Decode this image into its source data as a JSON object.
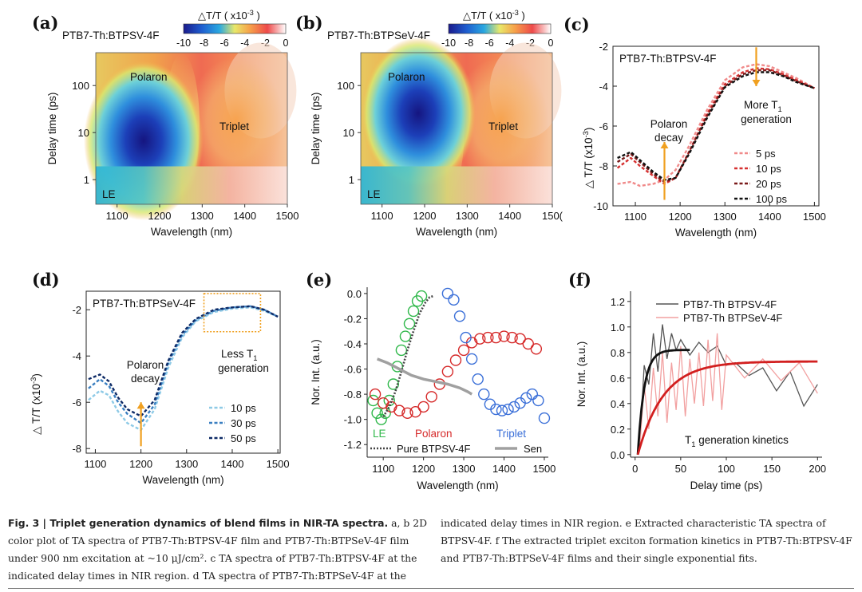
{
  "panels": {
    "a": {
      "label": "(a)",
      "sample": "PTB7-Th:BTPSV-4F",
      "colorbar": {
        "title": "△T/T ( x10",
        "exp": "-3",
        "close": " )",
        "ticks": [
          "-10",
          "-8",
          "-6",
          "-4",
          "-2",
          "0"
        ]
      },
      "yticks": [
        "100",
        "10",
        "1"
      ],
      "xticks": [
        "1100",
        "1200",
        "1300",
        "1400",
        "1500"
      ],
      "xlabel": "Wavelength (nm)",
      "ylabel": "Delay time (ps)",
      "annotations": {
        "polaron": "Polaron",
        "triplet": "Triplet",
        "le": "LE"
      }
    },
    "b": {
      "label": "(b)",
      "sample": "PTB7-Th:BTPSeV-4F",
      "colorbar": {
        "title": "△T/T ( x10",
        "exp": "-3",
        "close": " )",
        "ticks": [
          "-10",
          "-8",
          "-6",
          "-4",
          "-2",
          "0"
        ]
      },
      "yticks": [
        "100",
        "10",
        "1"
      ],
      "xticks": [
        "1100",
        "1200",
        "1300",
        "1400",
        "150("
      ],
      "xlabel": "Wavelength (nm)",
      "ylabel": "Delay time (ps)",
      "annotations": {
        "polaron": "Polaron",
        "triplet": "Triplet",
        "le": "LE"
      }
    },
    "c": {
      "label": "(c)",
      "sample": "PTB7-Th:BTPSV-4F",
      "ylabel": "△  T/T (x10",
      "ylabel_exp": "-3",
      "ylabel_close": ")",
      "xlabel": "Wavelength (nm)",
      "annotation_left": [
        "Polaron",
        "decay"
      ],
      "annotation_right": [
        "More T",
        "1",
        "generation"
      ],
      "legend": [
        "5 ps",
        "10 ps",
        "20 ps",
        "100 ps"
      ]
    },
    "d": {
      "label": "(d)",
      "sample": "PTB7-Th:BTPSeV-4F",
      "ylabel": "△  T/T (x10",
      "ylabel_exp": "-3",
      "ylabel_close": ")",
      "xlabel": "Wavelength (nm)",
      "annotation_left": [
        "Polaron",
        "decay"
      ],
      "annotation_right": [
        "Less T",
        "1",
        "generation"
      ],
      "legend": [
        "10 ps",
        "30 ps",
        "50 ps"
      ]
    },
    "e": {
      "label": "(e)",
      "ylabel": "Nor. Int. (a.u.)",
      "xlabel": "Wavelength (nm)",
      "series_labels": {
        "le": "LE",
        "polaron": "Polaron",
        "triplet": "Triplet",
        "pure": "Pure BTPSV-4F",
        "sen": "Sen"
      }
    },
    "f": {
      "label": "(f)",
      "ylabel": "Nor. Int. (a.u.)",
      "xlabel": "Delay time (ps)",
      "legend": [
        "PTB7-Th BTPSV-4F",
        "PTB7-Th BTPSeV-4F"
      ],
      "annotation": [
        "T",
        "1",
        " generation kinetics"
      ]
    }
  },
  "chart_data": [
    {
      "id": "a",
      "type": "heatmap",
      "title": "PTB7-Th:BTPSV-4F",
      "xlabel": "Wavelength (nm)",
      "ylabel": "Delay time (ps)",
      "xlim": [
        1050,
        1500
      ],
      "ylim": [
        0.3,
        500
      ],
      "yscale": "log",
      "colorbar_range": [
        -10,
        0
      ],
      "features": [
        {
          "name": "Polaron",
          "x": 1160,
          "y": 4,
          "value": -10
        },
        {
          "name": "Triplet",
          "x": 1380,
          "y": 10,
          "value": -3
        },
        {
          "name": "LE",
          "x": 1080,
          "y": 0.7,
          "value": -7
        }
      ]
    },
    {
      "id": "b",
      "type": "heatmap",
      "title": "PTB7-Th:BTPSeV-4F",
      "xlabel": "Wavelength (nm)",
      "ylabel": "Delay time (ps)",
      "xlim": [
        1050,
        1500
      ],
      "ylim": [
        0.3,
        500
      ],
      "yscale": "log",
      "colorbar_range": [
        -10,
        0
      ],
      "features": [
        {
          "name": "Polaron",
          "x": 1180,
          "y": 15,
          "value": -10
        },
        {
          "name": "Triplet",
          "x": 1390,
          "y": 10,
          "value": -3
        },
        {
          "name": "LE",
          "x": 1080,
          "y": 0.7,
          "value": -6
        }
      ]
    },
    {
      "id": "c",
      "type": "line",
      "title": "PTB7-Th:BTPSV-4F",
      "xlabel": "Wavelength (nm)",
      "ylabel": "△ T/T (x10^-3)",
      "xlim": [
        1050,
        1510
      ],
      "ylim": [
        -10,
        -2
      ],
      "xticks": [
        1100,
        1200,
        1300,
        1400,
        1500
      ],
      "yticks": [
        -10,
        -8,
        -6,
        -4,
        -2
      ],
      "x": [
        1060,
        1090,
        1110,
        1140,
        1165,
        1190,
        1220,
        1260,
        1300,
        1340,
        1370,
        1400,
        1430,
        1460,
        1500
      ],
      "series": [
        {
          "name": "5 ps",
          "color": "#f08a8a",
          "values": [
            -8.9,
            -8.8,
            -9.0,
            -8.9,
            -8.7,
            -8.2,
            -7.0,
            -5.2,
            -3.7,
            -3.05,
            -2.9,
            -3.0,
            -3.3,
            -3.6,
            -4.1
          ]
        },
        {
          "name": "10 ps",
          "color": "#d63030",
          "values": [
            -8.1,
            -7.6,
            -8.0,
            -8.5,
            -8.9,
            -8.6,
            -7.3,
            -5.4,
            -3.9,
            -3.3,
            -3.1,
            -3.15,
            -3.4,
            -3.7,
            -4.1
          ]
        },
        {
          "name": "20 ps",
          "color": "#7a1a1a",
          "values": [
            -7.8,
            -7.4,
            -7.8,
            -8.4,
            -8.8,
            -8.6,
            -7.3,
            -5.5,
            -4.0,
            -3.4,
            -3.2,
            -3.2,
            -3.45,
            -3.75,
            -4.1
          ]
        },
        {
          "name": "100 ps",
          "color": "#111111",
          "values": [
            -7.6,
            -7.3,
            -7.7,
            -8.3,
            -8.7,
            -8.6,
            -7.4,
            -5.6,
            -4.05,
            -3.5,
            -3.3,
            -3.3,
            -3.5,
            -3.8,
            -4.1
          ]
        }
      ]
    },
    {
      "id": "d",
      "type": "line",
      "title": "PTB7-Th:BTPSeV-4F",
      "xlabel": "Wavelength (nm)",
      "ylabel": "△ T/T (x10^-3)",
      "xlim": [
        1080,
        1505
      ],
      "ylim": [
        -8.2,
        -1.2
      ],
      "xticks": [
        1100,
        1200,
        1300,
        1400,
        1500
      ],
      "yticks": [
        -8,
        -6,
        -4,
        -2
      ],
      "x": [
        1085,
        1110,
        1130,
        1150,
        1170,
        1200,
        1230,
        1260,
        1290,
        1320,
        1360,
        1400,
        1440,
        1470,
        1500
      ],
      "series": [
        {
          "name": "10 ps",
          "color": "#8ecae6",
          "values": [
            -5.9,
            -5.5,
            -5.7,
            -6.4,
            -6.9,
            -7.2,
            -6.3,
            -4.5,
            -3.2,
            -2.5,
            -2.1,
            -1.95,
            -1.9,
            -2.05,
            -2.3
          ]
        },
        {
          "name": "30 ps",
          "color": "#3a7fc1",
          "values": [
            -5.4,
            -5.0,
            -5.3,
            -6.0,
            -6.5,
            -6.9,
            -6.1,
            -4.3,
            -3.1,
            -2.45,
            -2.05,
            -1.9,
            -1.85,
            -2.0,
            -2.3
          ]
        },
        {
          "name": "50 ps",
          "color": "#0d2a66",
          "values": [
            -5.0,
            -4.8,
            -5.1,
            -5.8,
            -6.3,
            -6.6,
            -5.9,
            -4.2,
            -3.0,
            -2.4,
            -2.0,
            -1.9,
            -1.85,
            -2.0,
            -2.3
          ]
        }
      ]
    },
    {
      "id": "e",
      "type": "scatter",
      "xlabel": "Wavelength (nm)",
      "ylabel": "Nor. Int. (a.u.)",
      "xlim": [
        1060,
        1510
      ],
      "ylim": [
        -1.3,
        0.05
      ],
      "xticks": [
        1100,
        1200,
        1300,
        1400,
        1500
      ],
      "yticks": [
        0.0,
        -0.2,
        -0.4,
        -0.6,
        -0.8,
        -1.0,
        -1.2
      ],
      "series": [
        {
          "name": "LE",
          "color": "#2fb84a",
          "marker": "circle",
          "x": [
            1075,
            1085,
            1095,
            1105,
            1115,
            1125,
            1135,
            1145,
            1155,
            1165,
            1175,
            1185,
            1195
          ],
          "y": [
            -0.85,
            -0.95,
            -1.0,
            -0.95,
            -0.85,
            -0.72,
            -0.58,
            -0.45,
            -0.34,
            -0.24,
            -0.14,
            -0.06,
            -0.02
          ]
        },
        {
          "name": "Polaron",
          "color": "#d62a2a",
          "marker": "circle",
          "x": [
            1080,
            1100,
            1120,
            1140,
            1160,
            1180,
            1200,
            1220,
            1240,
            1260,
            1280,
            1300,
            1320,
            1340,
            1360,
            1380,
            1400,
            1420,
            1440,
            1460,
            1480
          ],
          "y": [
            -0.8,
            -0.87,
            -0.9,
            -0.93,
            -0.95,
            -0.94,
            -0.9,
            -0.82,
            -0.72,
            -0.62,
            -0.53,
            -0.45,
            -0.39,
            -0.36,
            -0.35,
            -0.35,
            -0.34,
            -0.35,
            -0.36,
            -0.4,
            -0.44
          ]
        },
        {
          "name": "Triplet",
          "color": "#3a6fd8",
          "marker": "circle",
          "x": [
            1260,
            1275,
            1290,
            1305,
            1320,
            1335,
            1350,
            1365,
            1380,
            1395,
            1410,
            1425,
            1440,
            1455,
            1470,
            1485,
            1500
          ],
          "y": [
            0.0,
            -0.05,
            -0.18,
            -0.35,
            -0.52,
            -0.68,
            -0.8,
            -0.88,
            -0.92,
            -0.93,
            -0.92,
            -0.9,
            -0.87,
            -0.83,
            -0.8,
            -0.85,
            -0.99
          ]
        },
        {
          "name": "Pure BTPSV-4F",
          "color": "#444444",
          "marker": "dotted-line",
          "x": [
            1100,
            1115,
            1130,
            1145,
            1160,
            1175,
            1190,
            1205,
            1215,
            1225
          ],
          "y": [
            -0.98,
            -0.9,
            -0.78,
            -0.62,
            -0.45,
            -0.3,
            -0.16,
            -0.07,
            -0.03,
            -0.02
          ]
        },
        {
          "name": "Sen",
          "color": "#a0a0a0",
          "marker": "line",
          "x": [
            1085,
            1110,
            1140,
            1170,
            1200,
            1230,
            1260,
            1290,
            1310,
            1320
          ],
          "y": [
            -0.52,
            -0.55,
            -0.6,
            -0.65,
            -0.68,
            -0.7,
            -0.72,
            -0.75,
            -0.78,
            -0.8
          ]
        }
      ]
    },
    {
      "id": "f",
      "type": "line",
      "xlabel": "Delay time (ps)",
      "ylabel": "Nor. Int. (a.u.)",
      "xlim": [
        -5,
        205
      ],
      "ylim": [
        -0.02,
        1.28
      ],
      "xticks": [
        0,
        50,
        100,
        150,
        200
      ],
      "yticks": [
        0.0,
        0.2,
        0.4,
        0.6,
        0.8,
        1.0,
        1.2
      ],
      "series": [
        {
          "name": "PTB7-Th BTPSV-4F",
          "color": "#555555",
          "kind": "data",
          "x": [
            5,
            10,
            15,
            20,
            25,
            30,
            35,
            40,
            45,
            50,
            60,
            70,
            80,
            90,
            100,
            110,
            125,
            140,
            155,
            170,
            185,
            200
          ],
          "y": [
            0.05,
            0.7,
            0.55,
            0.95,
            0.65,
            1.02,
            0.75,
            0.95,
            0.82,
            0.9,
            0.78,
            0.88,
            0.8,
            0.85,
            0.7,
            0.72,
            0.62,
            0.68,
            0.5,
            0.65,
            0.38,
            0.55
          ]
        },
        {
          "name": "PTB7-Th BTPSeV-4F",
          "color": "#f2a0a0",
          "kind": "data",
          "x": [
            5,
            10,
            15,
            20,
            25,
            30,
            35,
            40,
            45,
            50,
            55,
            60,
            65,
            70,
            75,
            80,
            85,
            90,
            95,
            100,
            120,
            140,
            160,
            180,
            200
          ],
          "y": [
            0.05,
            0.55,
            0.2,
            0.68,
            0.3,
            0.8,
            0.25,
            0.72,
            0.35,
            0.85,
            0.3,
            0.75,
            0.4,
            0.8,
            0.38,
            0.9,
            0.42,
            0.95,
            0.35,
            0.78,
            0.6,
            0.75,
            0.58,
            0.72,
            0.48
          ]
        },
        {
          "name": "fit BTPSV-4F",
          "color": "#111111",
          "kind": "fit",
          "tau": 7,
          "amp": 0.82,
          "x_end": 60
        },
        {
          "name": "fit BTPSeV-4F",
          "color": "#d21f1f",
          "kind": "fit",
          "tau": 28,
          "amp": 0.73,
          "x_end": 200
        }
      ]
    }
  ],
  "caption": {
    "fig_label": "Fig. 3 | Triplet generation dynamics of blend films in NIR-TA spectra.",
    "left_text": " a, b 2D color plot of TA spectra of PTB7-Th:BTPSV-4F film and PTB7-Th:BTPSeV-4F film under 900 nm excitation at ~10 μJ/cm². c TA spectra of PTB7-Th:BTPSV-4F at the indicated delay times in NIR region. d TA spectra of PTB7-Th:BTPSeV-4F at the",
    "right_text": "indicated delay times in NIR region. e Extracted characteristic TA spectra of BTPSV-4F. f The extracted triplet exciton formation kinetics in PTB7-Th:BTPSV-4F and PTB7-Th:BTPSeV-4F films and their single exponential fits."
  }
}
